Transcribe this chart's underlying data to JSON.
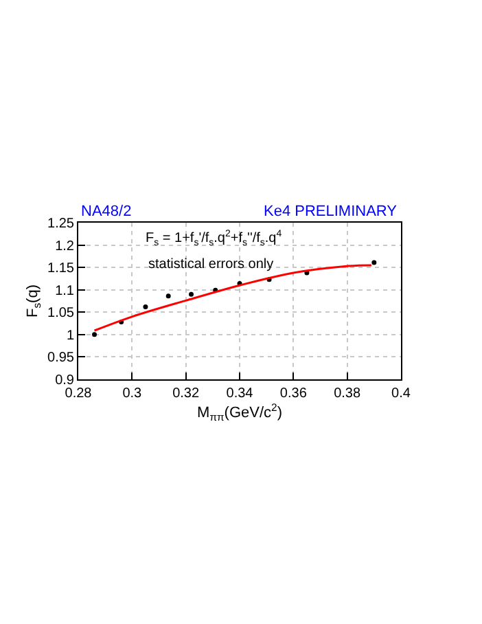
{
  "chart_data": {
    "type": "scatter",
    "xlabel": "M$_{ππ}$(GeV/c$^{2}$)",
    "ylabel": "F$_{s}$(q)",
    "annotations": [
      "NA48/2",
      "Ke4 PRELIMINARY",
      "F$_{s}$ = 1+f$_{s}$'/f$_{s}$.q$^{2}$+f$_{s}$''/f$_{s}$.q$^{4}$",
      "statistical errors only"
    ],
    "series": [
      {
        "color": "#000000",
        "marker": "circle",
        "x": [
          0.286,
          0.296,
          0.305,
          0.3135,
          0.322,
          0.331,
          0.34,
          0.351,
          0.365,
          0.39
        ],
        "values": [
          1.0,
          1.028,
          1.062,
          1.086,
          1.09,
          1.099,
          1.114,
          1.123,
          1.138,
          1.161
        ]
      },
      {
        "type": "line",
        "color": "#ff0000",
        "line_style": "solid",
        "x": [
          0.286,
          0.3,
          0.32,
          0.34,
          0.36,
          0.38,
          0.389
        ],
        "values": [
          1.009,
          1.04,
          1.076,
          1.11,
          1.138,
          1.153,
          1.155
        ]
      }
    ],
    "xlim": [
      0.28,
      0.4
    ],
    "xticks": [
      {
        "value": 0.28,
        "label": "0.28"
      },
      {
        "value": 0.3,
        "label": "0.3"
      },
      {
        "value": 0.32,
        "label": "0.32"
      },
      {
        "value": 0.34,
        "label": "0.34"
      },
      {
        "value": 0.36,
        "label": "0.36"
      },
      {
        "value": 0.38,
        "label": "0.38"
      },
      {
        "value": 0.4,
        "label": "0.4"
      }
    ],
    "ylim": [
      0.9,
      1.25
    ],
    "yticks": [
      0.9,
      0.95,
      1,
      1.05,
      1.1,
      1.15,
      1.2,
      1.25
    ],
    "grid": true,
    "legend": false
  }
}
